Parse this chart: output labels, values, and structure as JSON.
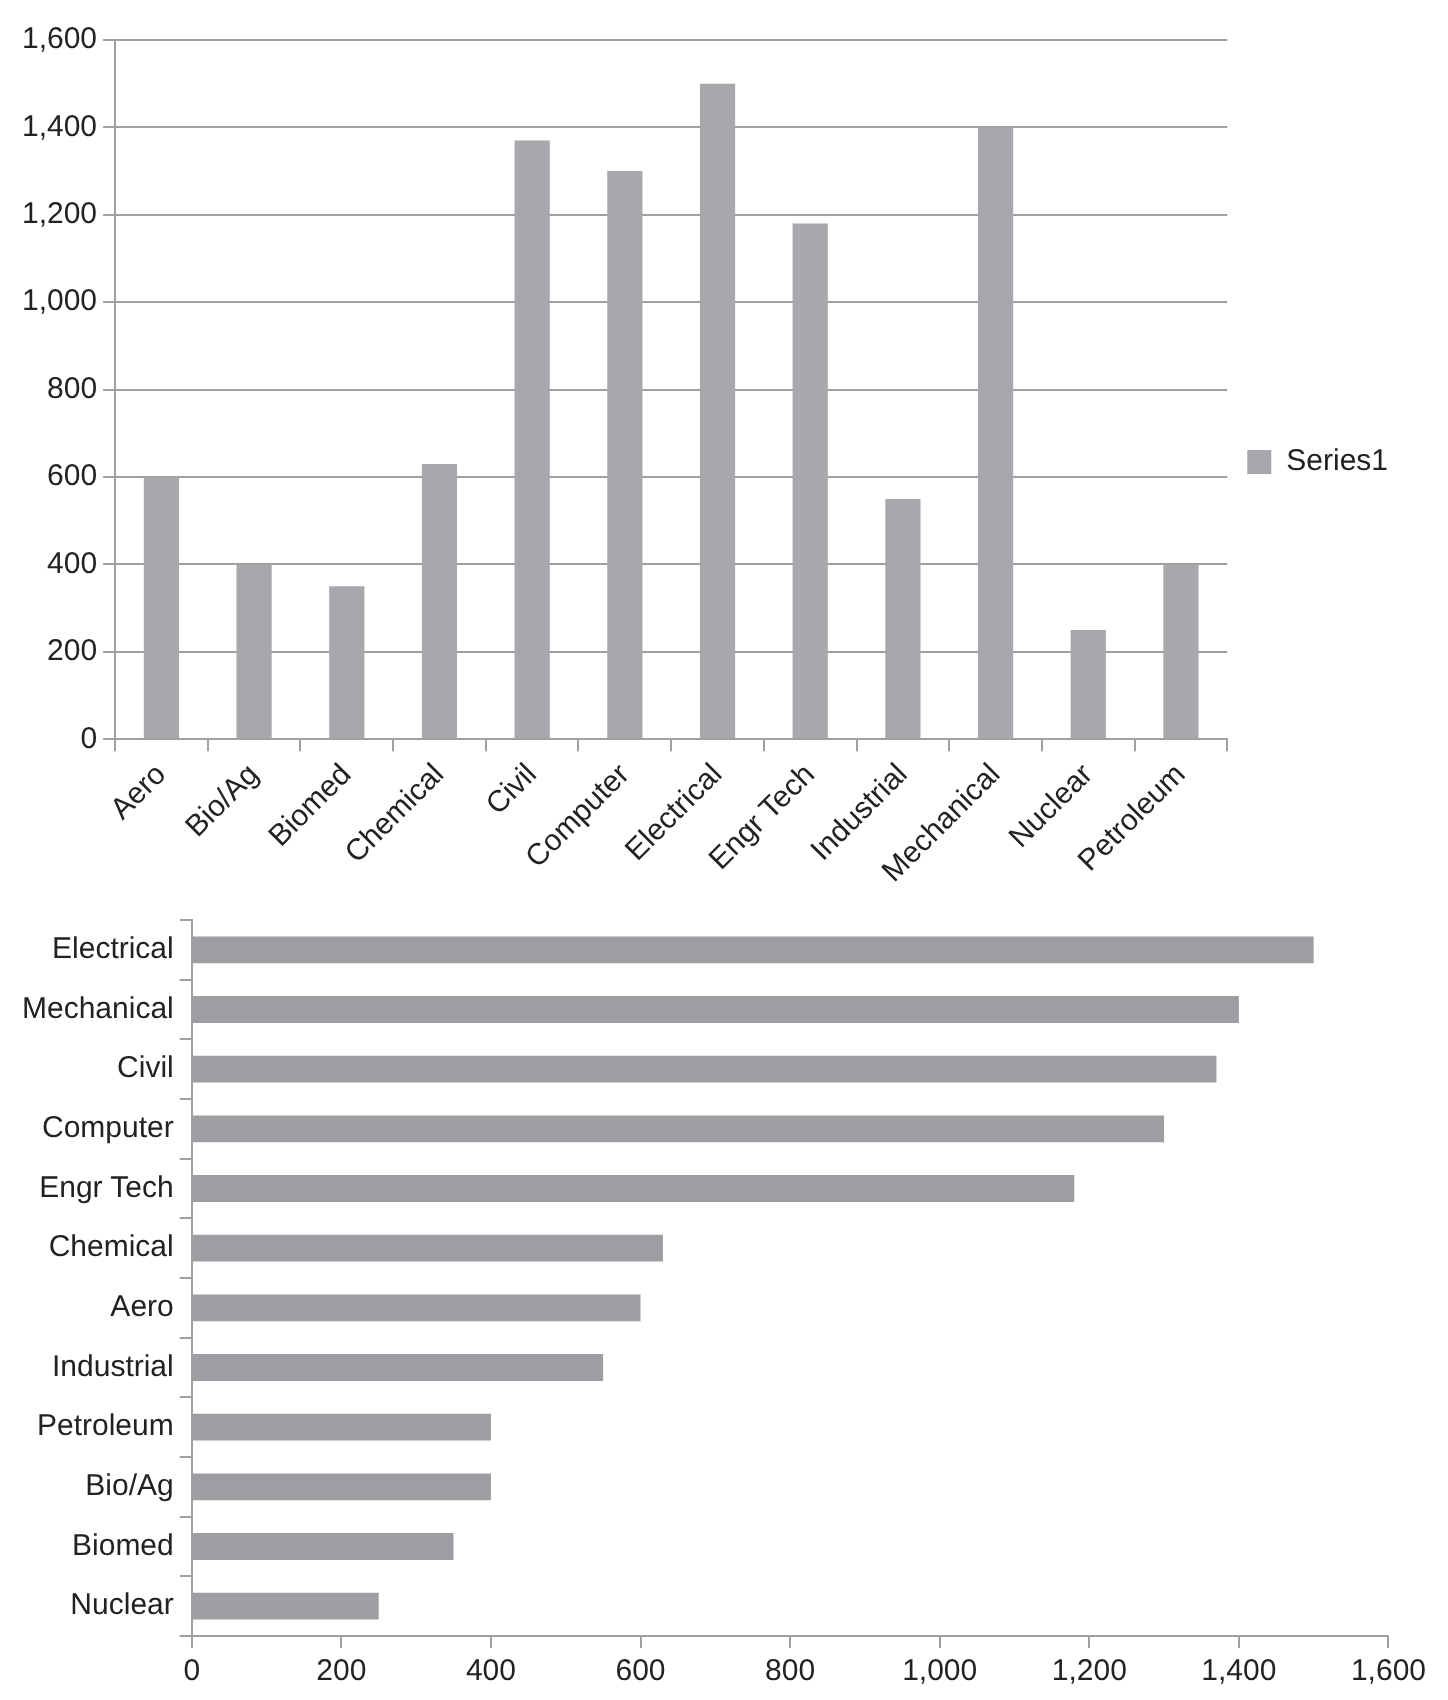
{
  "chart_data": [
    {
      "type": "bar",
      "categories": [
        "Aero",
        "Bio/Ag",
        "Biomed",
        "Chemical",
        "Civil",
        "Computer",
        "Electrical",
        "Engr Tech",
        "Industrial",
        "Mechanical",
        "Nuclear",
        "Petroleum"
      ],
      "series": [
        {
          "name": "Series1",
          "color": "#a7a8ac",
          "values": [
            600,
            400,
            350,
            630,
            1370,
            1300,
            1500,
            1180,
            550,
            1400,
            250,
            400
          ]
        }
      ],
      "ylim": [
        0,
        1600
      ],
      "yticks": [
        0,
        200,
        400,
        600,
        800,
        {
          "value": 1000,
          "label": "1,000"
        },
        {
          "value": 1200,
          "label": "1,200"
        },
        {
          "value": 1400,
          "label": "1,400"
        },
        {
          "value": 1600,
          "label": "1,600"
        }
      ],
      "grid": "y",
      "legend": "right"
    },
    {
      "type": "bar",
      "orientation": "horizontal",
      "categories": [
        "Electrical",
        "Mechanical",
        "Civil",
        "Computer",
        "Engr Tech",
        "Chemical",
        "Aero",
        "Industrial",
        "Petroleum",
        "Bio/Ag",
        "Biomed",
        "Nuclear"
      ],
      "series": [
        {
          "color": "#9d9ea2",
          "values": [
            1500,
            1400,
            1370,
            1300,
            1180,
            630,
            600,
            550,
            400,
            400,
            350,
            250
          ]
        }
      ],
      "xlim": [
        0,
        1600
      ],
      "xticks": [
        0,
        200,
        400,
        600,
        800,
        {
          "value": 1000,
          "label": "1,000"
        },
        {
          "value": 1200,
          "label": "1,200"
        },
        {
          "value": 1400,
          "label": "1,400"
        },
        {
          "value": 1600,
          "label": "1,600"
        }
      ],
      "grid": false,
      "legend": false
    }
  ]
}
